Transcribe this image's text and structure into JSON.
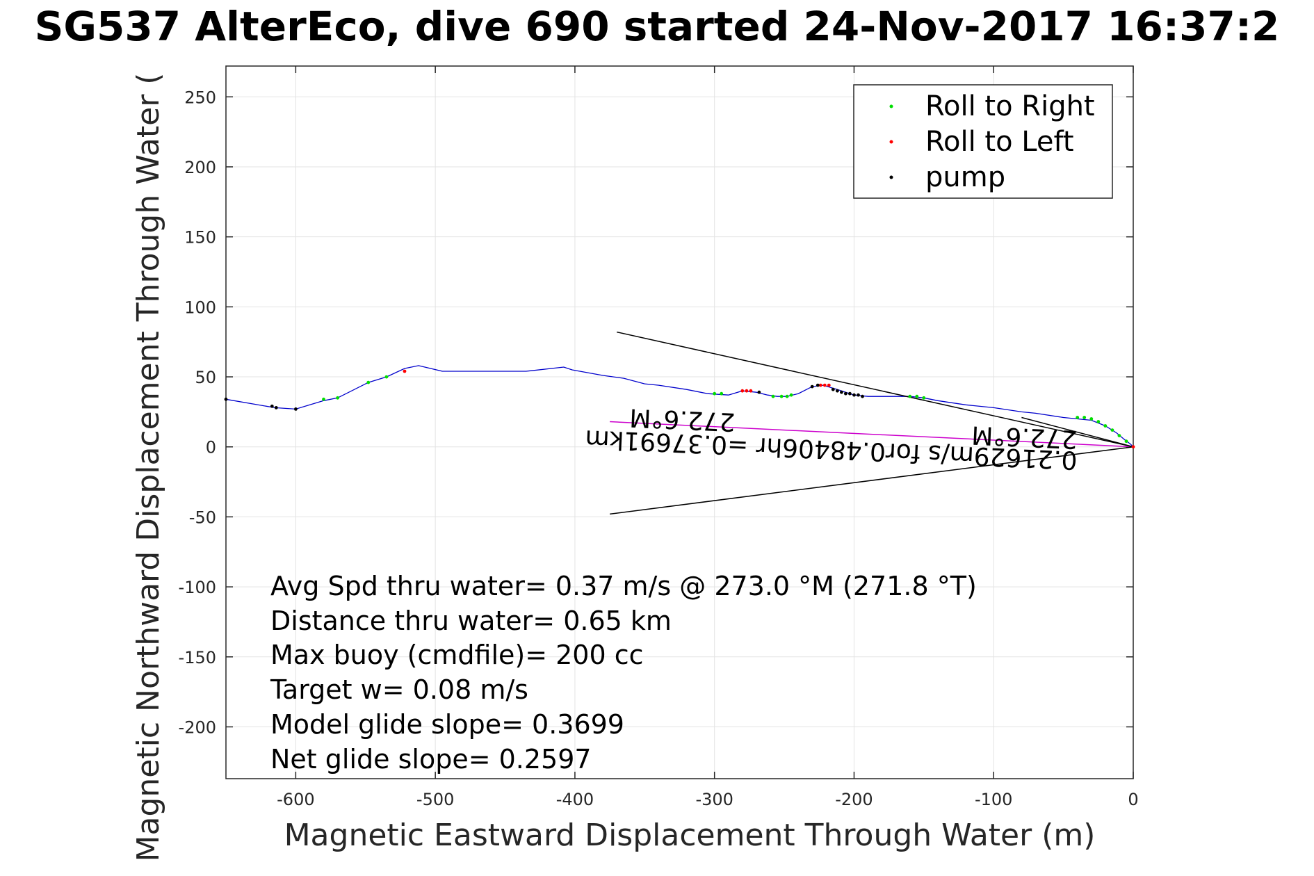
{
  "chart_data": {
    "type": "line",
    "title": "SG537 AlterEco, dive 690 started 24-Nov-2017 16:37:2",
    "xlabel": "Magnetic Eastward Displacement Through Water (m)",
    "ylabel": "Magnetic Northward Displacement Through Water (",
    "xlim": [
      -650,
      0
    ],
    "ylim": [
      -237,
      272
    ],
    "xticks": [
      -600,
      -500,
      -400,
      -300,
      -200,
      -100,
      0
    ],
    "yticks": [
      250,
      200,
      150,
      100,
      50,
      0,
      -50,
      -100,
      -150,
      -200
    ],
    "grid": true,
    "legend_position": "top-right",
    "colors": {
      "track": "#0000cc",
      "roll_right": "#00dd00",
      "roll_left": "#ff0000",
      "pump": "#000000",
      "current_line": "#cc00cc",
      "heading_lines": "#000000"
    },
    "series": [
      {
        "role": "track",
        "x": [
          -650,
          -615,
          -600,
          -580,
          -570,
          -548,
          -535,
          -522,
          -512,
          -495,
          -480,
          -450,
          -435,
          -408,
          -402,
          -380,
          -365,
          -350,
          -340,
          -320,
          -305,
          -290,
          -280,
          -270,
          -262,
          -255,
          -248,
          -240,
          -230,
          -222,
          -212,
          -200,
          -190,
          -175,
          -160,
          -150,
          -140,
          -120,
          -100,
          -80,
          -70,
          -50,
          -40,
          -30,
          -20,
          -12,
          -6,
          -2,
          0
        ],
        "y": [
          34,
          28,
          27,
          33,
          35,
          46,
          50,
          56,
          58,
          54,
          54,
          54,
          54,
          57,
          55,
          51,
          49,
          45,
          44,
          41,
          38,
          37,
          40,
          39,
          37,
          36,
          36,
          38,
          43,
          44,
          41,
          37,
          36,
          36,
          36,
          35,
          33,
          30,
          28,
          25,
          24,
          21,
          20,
          19,
          15,
          10,
          5,
          2,
          0
        ]
      },
      {
        "name": "Roll to Right",
        "x": [
          -580,
          -570,
          -548,
          -535,
          -300,
          -295,
          -258,
          -252,
          -248,
          -245,
          -160,
          -155,
          -150,
          -40,
          -35,
          -30,
          -25,
          -20,
          -15,
          -10,
          -5
        ],
        "y": [
          34,
          35,
          46,
          50,
          38,
          38,
          36,
          36,
          36,
          37,
          36,
          36,
          35,
          21,
          21,
          20,
          18,
          15,
          12,
          8,
          4
        ]
      },
      {
        "name": "Roll to Left",
        "x": [
          -522,
          -280,
          -277,
          -274,
          -224,
          -221,
          -218,
          0
        ],
        "y": [
          54,
          40,
          40,
          40,
          44,
          44,
          44,
          0
        ]
      },
      {
        "name": "pump",
        "x": [
          -650,
          -617,
          -614,
          -600,
          -268,
          -230,
          -226,
          -215,
          -212,
          -209,
          -206,
          -203,
          -200,
          -197,
          -194
        ],
        "y": [
          34,
          29,
          28,
          27,
          39,
          43,
          44,
          41,
          40,
          39,
          38,
          38,
          37,
          37,
          36
        ]
      },
      {
        "role": "current-vector",
        "x": [
          0,
          -375
        ],
        "y": [
          0,
          18
        ]
      },
      {
        "role": "heading-line-upper",
        "x": [
          0,
          -370
        ],
        "y": [
          0,
          82
        ]
      },
      {
        "role": "heading-line-lower",
        "x": [
          0,
          -375
        ],
        "y": [
          0,
          -48
        ]
      },
      {
        "role": "heading-line-short",
        "x": [
          0,
          -80
        ],
        "y": [
          0,
          21
        ]
      }
    ],
    "annotations": [
      {
        "text": "0.21629m/s for0.48406hr =0.37691km",
        "rotated": true
      },
      {
        "text": "272.6°M",
        "rotated": true
      },
      {
        "text": "272.6°M",
        "rotated": true
      }
    ],
    "stats": [
      "Avg Spd thru water=  0.37 m/s @ 273.0 °M (271.8 °T)",
      "Distance thru water=  0.65 km",
      "Max buoy (cmdfile)= 200 cc",
      "Target w= 0.08 m/s",
      "Model glide slope= 0.3699",
      "Net glide slope= 0.2597"
    ]
  }
}
